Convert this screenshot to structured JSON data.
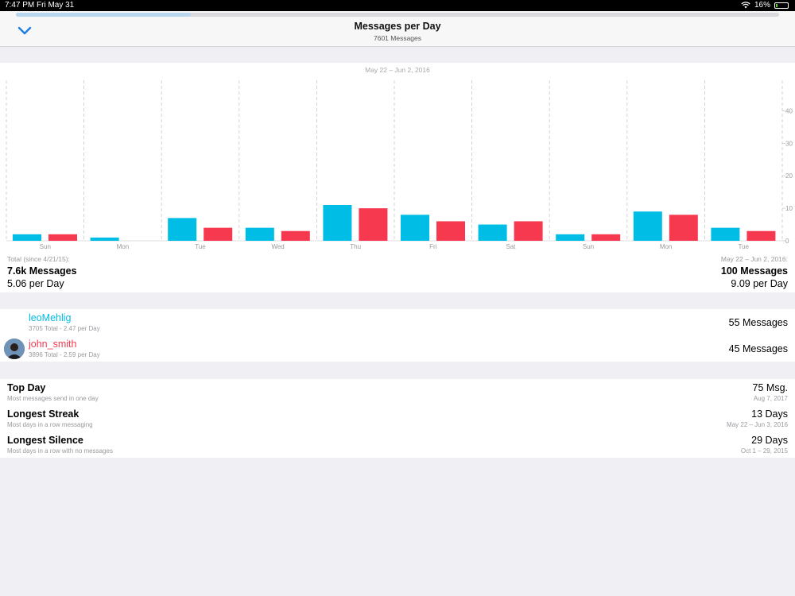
{
  "status": {
    "time": "7:47 PM",
    "date": "Fri May 31",
    "battery": "16%",
    "battery_level": 0.16
  },
  "nav": {
    "title": "Messages per Day",
    "subtitle": "7601 Messages",
    "close_icon": "chevron-down-icon"
  },
  "colors": {
    "user1": "#00bde6",
    "user2": "#f7394f",
    "accent": "#1a7ee0"
  },
  "chart_data": {
    "type": "bar",
    "title": "May 22 – Jun 2, 2016",
    "categories": [
      "Sun",
      "Mon",
      "Tue",
      "Wed",
      "Thu",
      "Fri",
      "Sat",
      "Sun",
      "Mon",
      "Tue"
    ],
    "series": [
      {
        "name": "leoMehlig",
        "values": [
          2,
          1,
          7,
          4,
          11,
          8,
          5,
          2,
          9,
          4
        ]
      },
      {
        "name": "john_smith",
        "values": [
          2,
          0,
          4,
          3,
          10,
          6,
          6,
          2,
          8,
          3
        ]
      }
    ],
    "yticks": [
      0,
      10,
      20,
      30,
      40
    ],
    "ylim": [
      0,
      44
    ],
    "grid": "vertical dashed",
    "xlabel": "",
    "ylabel": ""
  },
  "totals": {
    "left_label": "Total (since 4/21/15):",
    "left_messages": "7.6k Messages",
    "left_per_day": "5.06 per Day",
    "right_label": "May 22 – Jun 2, 2016:",
    "right_messages": "100 Messages",
    "right_per_day": "9.09 per Day"
  },
  "users": [
    {
      "name": "leoMehlig",
      "sub": "3705 Total - 2.47 per Day",
      "messages": "55 Messages"
    },
    {
      "name": "john_smith",
      "sub": "3896 Total - 2.59 per Day",
      "messages": "45 Messages"
    }
  ],
  "stats": [
    {
      "label": "Top Day",
      "sub": "Most messages send in one day",
      "value": "75 Msg.",
      "date": "Aug 7, 2017"
    },
    {
      "label": "Longest Streak",
      "sub": "Most days in a row messaging",
      "value": "13 Days",
      "date": "May 22 – Jun 3, 2016"
    },
    {
      "label": "Longest Silence",
      "sub": "Most days in a row with no messages",
      "value": "29 Days",
      "date": "Oct 1 – 29, 2015"
    }
  ]
}
